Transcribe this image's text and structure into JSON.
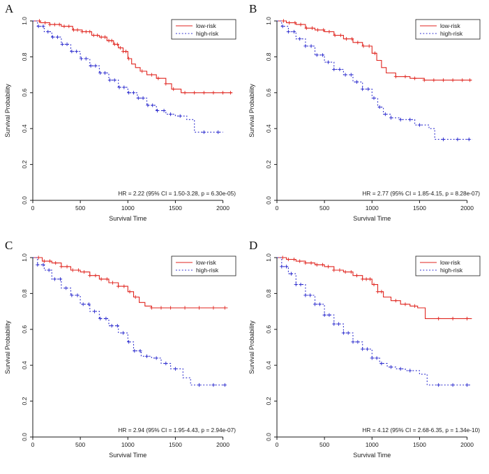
{
  "figure": {
    "background": "#ffffff",
    "text_color": "#1a1a1a"
  },
  "chart_data": [
    {
      "panel_label": "A",
      "type": "line",
      "subtype": "kaplan-meier-step",
      "xlabel": "Survival Time",
      "ylabel": "Survival Probability",
      "xlim": [
        0,
        2150
      ],
      "ylim": [
        0,
        1.0
      ],
      "xticks": [
        0,
        500,
        1000,
        1500,
        2000
      ],
      "yticks": [
        0.0,
        0.2,
        0.4,
        0.6,
        0.8,
        1.0
      ],
      "grid": false,
      "legend_position": "top-right",
      "annotation": "HR = 2.22 (95% CI = 1.50-3.28, p = 6.30e-05)",
      "series": [
        {
          "name": "low-risk",
          "color": "#e0251f",
          "style": "solid",
          "x": [
            0,
            80,
            180,
            300,
            420,
            520,
            620,
            700,
            780,
            850,
            900,
            950,
            1000,
            1040,
            1080,
            1130,
            1200,
            1300,
            1400,
            1460,
            1560,
            2100
          ],
          "y": [
            1.0,
            0.99,
            0.98,
            0.97,
            0.95,
            0.94,
            0.92,
            0.91,
            0.89,
            0.87,
            0.85,
            0.83,
            0.79,
            0.76,
            0.74,
            0.72,
            0.7,
            0.68,
            0.65,
            0.62,
            0.6,
            0.6
          ],
          "censor_x": [
            70,
            130,
            180,
            230,
            280,
            330,
            380,
            430,
            470,
            520,
            560,
            600,
            640,
            680,
            720,
            760,
            800,
            830,
            860,
            890,
            920,
            950,
            980,
            1010,
            1150,
            1250,
            1320,
            1400,
            1480,
            1600,
            1700,
            1800,
            1900,
            2000,
            2080
          ]
        },
        {
          "name": "high-risk",
          "color": "#2424cc",
          "style": "dotted",
          "x": [
            0,
            50,
            120,
            200,
            300,
            400,
            500,
            600,
            700,
            800,
            900,
            1000,
            1100,
            1200,
            1300,
            1400,
            1500,
            1620,
            1700,
            2000
          ],
          "y": [
            1.0,
            0.97,
            0.94,
            0.91,
            0.87,
            0.83,
            0.79,
            0.75,
            0.71,
            0.67,
            0.63,
            0.6,
            0.57,
            0.53,
            0.5,
            0.48,
            0.47,
            0.45,
            0.38,
            0.38
          ],
          "censor_x": [
            60,
            110,
            160,
            210,
            260,
            310,
            360,
            410,
            460,
            510,
            560,
            610,
            660,
            710,
            760,
            810,
            860,
            910,
            960,
            1010,
            1060,
            1110,
            1160,
            1210,
            1260,
            1310,
            1380,
            1450,
            1550,
            1800,
            1950
          ]
        }
      ]
    },
    {
      "panel_label": "B",
      "type": "line",
      "subtype": "kaplan-meier-step",
      "xlabel": "Survival Time",
      "ylabel": "Survival Probability",
      "xlim": [
        0,
        2150
      ],
      "ylim": [
        0,
        1.0
      ],
      "xticks": [
        0,
        500,
        1000,
        1500,
        2000
      ],
      "yticks": [
        0.0,
        0.2,
        0.4,
        0.6,
        0.8,
        1.0
      ],
      "grid": false,
      "legend_position": "top-right",
      "annotation": "HR = 2.77 (95% CI = 1.85-4.15, p = 8.28e-07)",
      "series": [
        {
          "name": "low-risk",
          "color": "#e0251f",
          "style": "solid",
          "x": [
            0,
            100,
            200,
            300,
            400,
            500,
            600,
            700,
            800,
            900,
            1000,
            1050,
            1100,
            1150,
            1250,
            1400,
            1550,
            2050
          ],
          "y": [
            1.0,
            0.99,
            0.98,
            0.96,
            0.95,
            0.94,
            0.92,
            0.9,
            0.88,
            0.86,
            0.82,
            0.78,
            0.74,
            0.71,
            0.69,
            0.68,
            0.67,
            0.67
          ],
          "censor_x": [
            70,
            130,
            190,
            250,
            310,
            370,
            430,
            490,
            550,
            610,
            670,
            730,
            790,
            850,
            910,
            970,
            1030,
            1250,
            1350,
            1450,
            1550,
            1650,
            1750,
            1850,
            1950,
            2030
          ]
        },
        {
          "name": "high-risk",
          "color": "#2424cc",
          "style": "dotted",
          "x": [
            0,
            50,
            120,
            200,
            300,
            400,
            500,
            600,
            700,
            800,
            900,
            1000,
            1060,
            1120,
            1200,
            1300,
            1450,
            1600,
            1660,
            2050
          ],
          "y": [
            1.0,
            0.97,
            0.94,
            0.9,
            0.86,
            0.81,
            0.77,
            0.73,
            0.7,
            0.66,
            0.62,
            0.57,
            0.52,
            0.48,
            0.46,
            0.45,
            0.42,
            0.4,
            0.34,
            0.34
          ],
          "censor_x": [
            60,
            120,
            180,
            240,
            300,
            360,
            420,
            480,
            540,
            600,
            660,
            720,
            780,
            840,
            900,
            960,
            1020,
            1080,
            1140,
            1200,
            1300,
            1400,
            1500,
            1750,
            1900,
            2020
          ]
        }
      ]
    },
    {
      "panel_label": "C",
      "type": "line",
      "subtype": "kaplan-meier-step",
      "xlabel": "Survival Time",
      "ylabel": "Survival Probability",
      "xlim": [
        0,
        2150
      ],
      "ylim": [
        0,
        1.0
      ],
      "xticks": [
        0,
        500,
        1000,
        1500,
        2000
      ],
      "yticks": [
        0.0,
        0.2,
        0.4,
        0.6,
        0.8,
        1.0
      ],
      "grid": false,
      "legend_position": "top-right",
      "annotation": "HR = 2.94 (95% CI = 1.95-4.43, p = 2.94e-07)",
      "series": [
        {
          "name": "low-risk",
          "color": "#e0251f",
          "style": "solid",
          "x": [
            0,
            100,
            200,
            300,
            400,
            500,
            600,
            700,
            800,
            900,
            1000,
            1060,
            1120,
            1180,
            1250,
            1400,
            2050
          ],
          "y": [
            1.0,
            0.98,
            0.97,
            0.95,
            0.93,
            0.92,
            0.9,
            0.88,
            0.86,
            0.84,
            0.81,
            0.78,
            0.75,
            0.73,
            0.72,
            0.72,
            0.72
          ],
          "censor_x": [
            60,
            120,
            180,
            240,
            300,
            360,
            420,
            480,
            540,
            600,
            660,
            720,
            780,
            840,
            900,
            960,
            1020,
            1080,
            1250,
            1350,
            1450,
            1600,
            1750,
            1900,
            2020
          ]
        },
        {
          "name": "high-risk",
          "color": "#2424cc",
          "style": "dotted",
          "x": [
            0,
            50,
            120,
            200,
            300,
            400,
            500,
            600,
            700,
            800,
            900,
            1000,
            1060,
            1140,
            1250,
            1350,
            1450,
            1580,
            1660,
            2050
          ],
          "y": [
            1.0,
            0.96,
            0.93,
            0.88,
            0.83,
            0.79,
            0.74,
            0.7,
            0.66,
            0.62,
            0.58,
            0.53,
            0.48,
            0.45,
            0.44,
            0.41,
            0.38,
            0.33,
            0.29,
            0.29
          ],
          "censor_x": [
            50,
            110,
            170,
            230,
            290,
            350,
            410,
            470,
            530,
            590,
            650,
            710,
            770,
            830,
            890,
            950,
            1010,
            1070,
            1130,
            1200,
            1300,
            1400,
            1500,
            1750,
            1900,
            2020
          ]
        }
      ]
    },
    {
      "panel_label": "D",
      "type": "line",
      "subtype": "kaplan-meier-step",
      "xlabel": "Survival Time",
      "ylabel": "Survival Probability",
      "xlim": [
        0,
        2150
      ],
      "ylim": [
        0,
        1.0
      ],
      "xticks": [
        0,
        500,
        1000,
        1500,
        2000
      ],
      "yticks": [
        0.0,
        0.2,
        0.4,
        0.6,
        0.8,
        1.0
      ],
      "grid": false,
      "legend_position": "top-right",
      "annotation": "HR = 4.12 (95% CI = 2.68-6.35, p = 1.34e-10)",
      "series": [
        {
          "name": "low-risk",
          "color": "#e0251f",
          "style": "solid",
          "x": [
            0,
            100,
            200,
            300,
            400,
            500,
            600,
            700,
            800,
            900,
            1000,
            1060,
            1120,
            1200,
            1300,
            1400,
            1480,
            1560,
            2050
          ],
          "y": [
            1.0,
            0.99,
            0.98,
            0.97,
            0.96,
            0.95,
            0.93,
            0.92,
            0.9,
            0.88,
            0.85,
            0.81,
            0.78,
            0.76,
            0.74,
            0.73,
            0.72,
            0.66,
            0.66
          ],
          "censor_x": [
            60,
            120,
            180,
            240,
            300,
            360,
            420,
            480,
            540,
            600,
            660,
            720,
            780,
            840,
            900,
            940,
            980,
            1020,
            1060,
            1100,
            1250,
            1350,
            1450,
            1700,
            1850,
            2000
          ]
        },
        {
          "name": "high-risk",
          "color": "#2424cc",
          "style": "dotted",
          "x": [
            0,
            50,
            120,
            200,
            300,
            400,
            500,
            600,
            700,
            800,
            900,
            1000,
            1080,
            1160,
            1250,
            1350,
            1500,
            1580,
            2050
          ],
          "y": [
            1.0,
            0.95,
            0.91,
            0.85,
            0.79,
            0.74,
            0.68,
            0.63,
            0.58,
            0.53,
            0.49,
            0.44,
            0.41,
            0.39,
            0.38,
            0.37,
            0.35,
            0.29,
            0.29
          ],
          "censor_x": [
            50,
            100,
            150,
            200,
            250,
            300,
            350,
            400,
            450,
            500,
            550,
            600,
            650,
            700,
            750,
            800,
            850,
            900,
            950,
            1000,
            1050,
            1100,
            1200,
            1300,
            1400,
            1700,
            1850,
            2000
          ]
        }
      ]
    }
  ]
}
